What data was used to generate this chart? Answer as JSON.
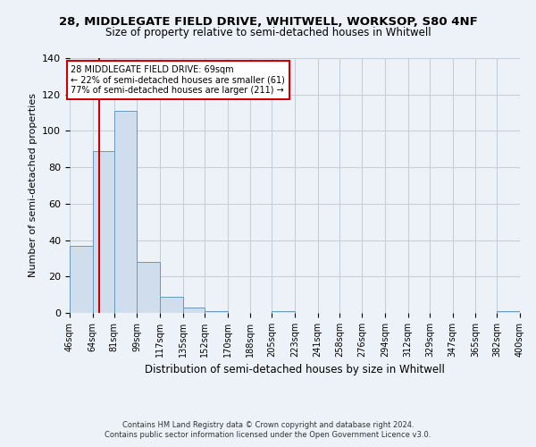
{
  "title1": "28, MIDDLEGATE FIELD DRIVE, WHITWELL, WORKSOP, S80 4NF",
  "title2": "Size of property relative to semi-detached houses in Whitwell",
  "xlabel": "Distribution of semi-detached houses by size in Whitwell",
  "ylabel": "Number of semi-detached properties",
  "bin_edges": [
    46,
    64,
    81,
    99,
    117,
    135,
    152,
    170,
    188,
    205,
    223,
    241,
    258,
    276,
    294,
    312,
    329,
    347,
    365,
    382,
    400
  ],
  "bin_counts": [
    37,
    89,
    111,
    28,
    9,
    3,
    1,
    0,
    0,
    1,
    0,
    0,
    0,
    0,
    0,
    0,
    0,
    0,
    0,
    1
  ],
  "property_value": 69,
  "bar_color": "#cfdded",
  "bar_edge_color": "#6699bb",
  "vline_color": "#cc0000",
  "annotation_title": "28 MIDDLEGATE FIELD DRIVE: 69sqm",
  "annotation_line1": "← 22% of semi-detached houses are smaller (61)",
  "annotation_line2": "77% of semi-detached houses are larger (211) →",
  "ylim": [
    0,
    140
  ],
  "yticks": [
    0,
    20,
    40,
    60,
    80,
    100,
    120,
    140
  ],
  "tick_labels": [
    "46sqm",
    "64sqm",
    "81sqm",
    "99sqm",
    "117sqm",
    "135sqm",
    "152sqm",
    "170sqm",
    "188sqm",
    "205sqm",
    "223sqm",
    "241sqm",
    "258sqm",
    "276sqm",
    "294sqm",
    "312sqm",
    "329sqm",
    "347sqm",
    "365sqm",
    "382sqm",
    "400sqm"
  ],
  "footnote1": "Contains HM Land Registry data © Crown copyright and database right 2024.",
  "footnote2": "Contains public sector information licensed under the Open Government Licence v3.0.",
  "bg_color": "#edf2f8",
  "plot_bg_color": "#edf2f8",
  "grid_color": "#c5cfd9"
}
